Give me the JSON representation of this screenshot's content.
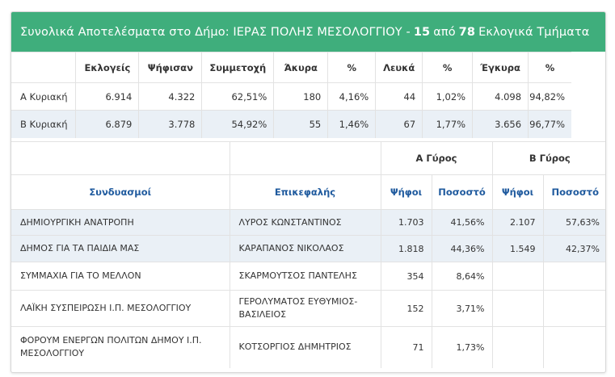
{
  "header": {
    "prefix": "Συνολικά Αποτελέσματα στο Δήμο: ΙΕΡΑΣ ΠΟΛΗΣ ΜΕΣΟΛΟΓΓΙΟΥ -",
    "counted": "15",
    "middle": "από",
    "total": "78",
    "suffix": "Εκλογικά Τμήματα"
  },
  "summary": {
    "columns": [
      "",
      "Εκλογείς",
      "Ψήφισαν",
      "Συμμετοχή",
      "Άκυρα",
      "%",
      "Λευκά",
      "%",
      "Έγκυρα",
      "%"
    ],
    "rows": [
      [
        "Α Κυριακή",
        "6.914",
        "4.322",
        "62,51%",
        "180",
        "4,16%",
        "44",
        "1,02%",
        "4.098",
        "94,82%"
      ],
      [
        "Β Κυριακή",
        "6.879",
        "3.778",
        "54,92%",
        "55",
        "1,46%",
        "67",
        "1,77%",
        "3.656",
        "96,77%"
      ]
    ]
  },
  "candidates": {
    "round_a": "Α Γύρος",
    "round_b": "Β Γύρος",
    "columns": [
      "Συνδυασμοί",
      "Επικεφαλής",
      "Ψήφοι",
      "Ποσοστό",
      "Ψήφοι",
      "Ποσοστό"
    ],
    "rows": [
      [
        "ΔΗΜΙΟΥΡΓΙΚΗ ΑΝΑΤΡΟΠΗ",
        "ΛΥΡΟΣ ΚΩΝΣΤΑΝΤΙΝΟΣ",
        "1.703",
        "41,56%",
        "2.107",
        "57,63%"
      ],
      [
        "ΔΗΜΟΣ ΓΙΑ ΤΑ ΠΑΙΔΙΑ ΜΑΣ",
        "ΚΑΡΑΠΑΝΟΣ ΝΙΚΟΛΑΟΣ",
        "1.818",
        "44,36%",
        "1.549",
        "42,37%"
      ],
      [
        "ΣΥΜΜΑΧΙΑ ΓΙΑ ΤΟ ΜΕΛΛΟΝ",
        "ΣΚΑΡΜΟΥΤΣΟΣ ΠΑΝΤΕΛΗΣ",
        "354",
        "8,64%",
        "",
        ""
      ],
      [
        "ΛΑΪΚΗ ΣΥΣΠΕΙΡΩΣΗ Ι.Π. ΜΕΣΟΛΟΓΓΙΟΥ",
        "ΓΕΡΟΛΥΜΑΤΟΣ ΕΥΘΥΜΙΟΣ-ΒΑΣΙΛΕΙΟΣ",
        "152",
        "3,71%",
        "",
        ""
      ],
      [
        "ΦΟΡΟΥΜ ΕΝΕΡΓΩΝ ΠΟΛΙΤΩΝ ΔΗΜΟΥ Ι.Π. ΜΕΣΟΛΟΓΓΙΟΥ",
        "ΚΟΤΣΟΡΓΙΟΣ ΔΗΜΗΤΡΙΟΣ",
        "71",
        "1,73%",
        "",
        ""
      ]
    ]
  },
  "colors": {
    "header_bg": "#3fae7c",
    "highlight_row": "#eaf0f6",
    "column_header_text": "#1f5a9e"
  }
}
